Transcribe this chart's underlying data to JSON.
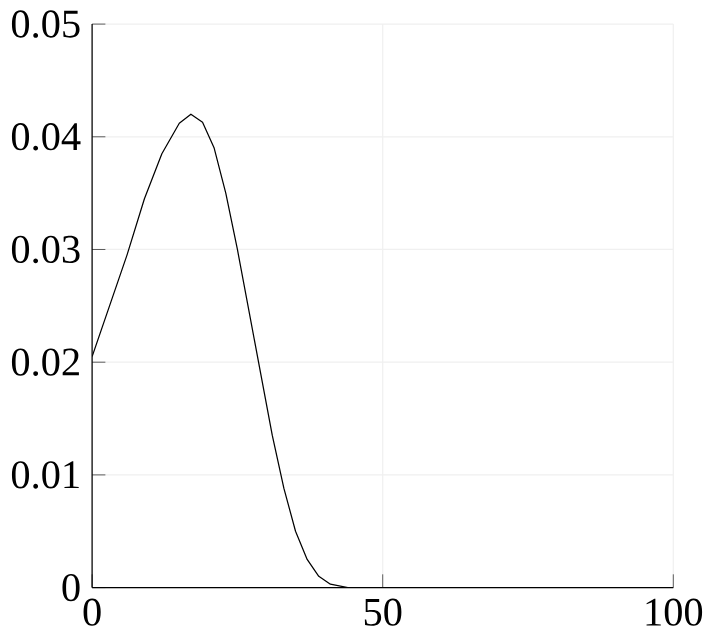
{
  "chart_data": {
    "type": "line",
    "x": [
      0,
      3,
      6,
      9,
      12,
      15,
      17,
      19,
      21,
      23,
      25,
      27,
      29,
      31,
      33,
      35,
      37,
      39,
      41,
      44,
      50,
      60,
      70,
      80,
      90,
      100
    ],
    "values": [
      0.0205,
      0.025,
      0.0295,
      0.0345,
      0.0385,
      0.0412,
      0.042,
      0.0413,
      0.039,
      0.035,
      0.03,
      0.0245,
      0.019,
      0.0135,
      0.0088,
      0.005,
      0.0025,
      0.001,
      0.0003,
      0,
      0,
      0,
      0,
      0,
      0,
      0
    ],
    "color": "#000000",
    "xlim": [
      0,
      100
    ],
    "ylim": [
      0,
      0.05
    ],
    "xticks": [
      0,
      50,
      100
    ],
    "yticks": [
      0,
      0.01,
      0.02,
      0.03,
      0.04,
      0.05
    ],
    "grid": true
  }
}
